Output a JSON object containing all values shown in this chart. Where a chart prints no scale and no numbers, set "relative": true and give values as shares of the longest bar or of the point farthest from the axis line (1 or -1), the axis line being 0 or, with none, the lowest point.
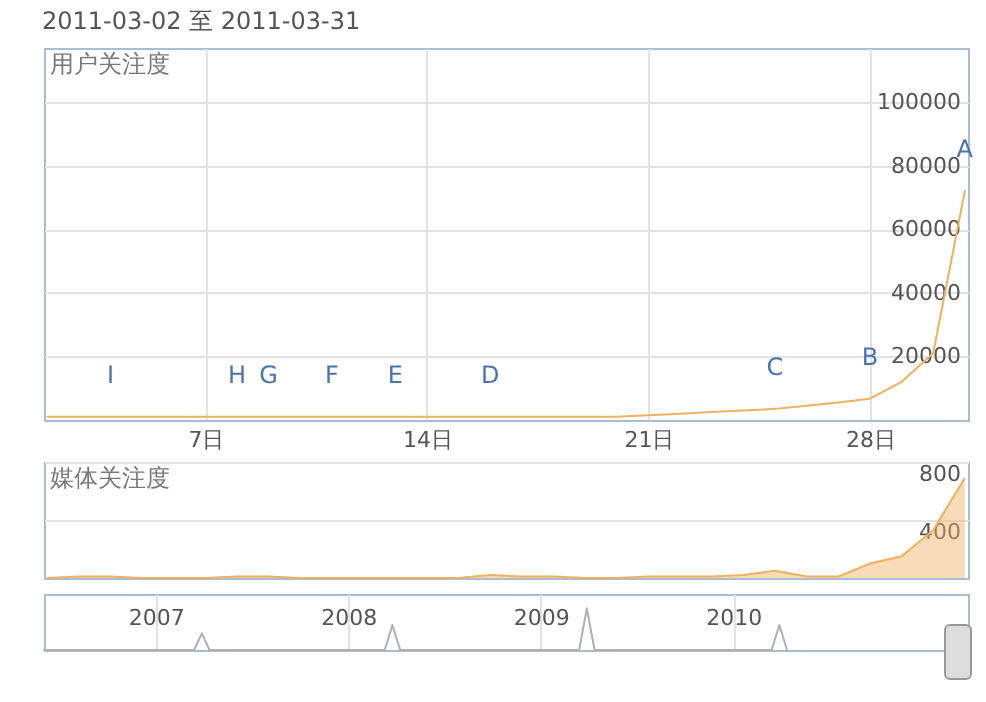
{
  "chart_data": [
    {
      "type": "line",
      "title": "2011-03-02 至 2011-03-31",
      "ylabel": "用户关注度",
      "color": "#f0b060",
      "x": [
        2,
        3,
        4,
        5,
        6,
        7,
        8,
        9,
        10,
        11,
        12,
        13,
        14,
        15,
        16,
        17,
        18,
        19,
        20,
        21,
        22,
        23,
        24,
        25,
        26,
        27,
        28,
        29,
        30,
        31
      ],
      "values": [
        1000,
        1000,
        1000,
        1000,
        1000,
        1000,
        1000,
        1000,
        1000,
        1000,
        1000,
        1000,
        1000,
        1000,
        1000,
        1000,
        1000,
        1000,
        1000,
        1500,
        2000,
        2500,
        3000,
        3500,
        4500,
        5500,
        6700,
        12000,
        21000,
        72000
      ],
      "xlim": [
        1.9,
        31.1
      ],
      "xticks": [
        {
          "value": 7,
          "label": "7日"
        },
        {
          "value": 14,
          "label": "14日"
        },
        {
          "value": 21,
          "label": "21日"
        },
        {
          "value": 28,
          "label": "28日"
        }
      ],
      "ylim": [
        0,
        117000
      ],
      "yticks": [
        20000,
        40000,
        60000,
        80000,
        100000
      ],
      "grid": true,
      "annotations": [
        {
          "text": "I",
          "x": 4,
          "y": 1000
        },
        {
          "text": "H",
          "x": 8,
          "y": 1000
        },
        {
          "text": "G",
          "x": 9,
          "y": 1000
        },
        {
          "text": "F",
          "x": 11,
          "y": 1000
        },
        {
          "text": "E",
          "x": 13,
          "y": 1000
        },
        {
          "text": "D",
          "x": 16,
          "y": 1000
        },
        {
          "text": "C",
          "x": 25,
          "y": 3500
        },
        {
          "text": "B",
          "x": 28,
          "y": 6700
        },
        {
          "text": "A",
          "x": 31,
          "y": 72000
        }
      ]
    },
    {
      "type": "area",
      "ylabel": "媒体关注度",
      "color": "#f0b060",
      "x": [
        2,
        3,
        4,
        5,
        6,
        7,
        8,
        9,
        10,
        11,
        12,
        13,
        14,
        15,
        16,
        17,
        18,
        19,
        20,
        21,
        22,
        23,
        24,
        25,
        26,
        27,
        28,
        29,
        30,
        31
      ],
      "values": [
        0,
        10,
        10,
        0,
        0,
        0,
        10,
        10,
        0,
        0,
        0,
        0,
        0,
        0,
        20,
        10,
        10,
        0,
        0,
        10,
        10,
        10,
        20,
        50,
        10,
        10,
        100,
        150,
        330,
        690
      ],
      "xlim": [
        1.9,
        31.1
      ],
      "ylim": [
        0,
        800
      ],
      "yticks": [
        400,
        800
      ],
      "grid": true,
      "tick_labels": "y"
    },
    {
      "type": "line",
      "relative": true,
      "color": "#b0b0b0",
      "x": [
        2006.42,
        2007.2,
        2007.24,
        2007.28,
        2008.19,
        2008.23,
        2008.27,
        2009.2,
        2009.24,
        2009.28,
        2010.2,
        2010.24,
        2010.28
      ],
      "values": [
        0,
        0,
        0.4,
        0,
        0,
        0.6,
        0,
        0,
        1,
        0,
        0,
        0.6,
        0
      ],
      "xlim": [
        2006.42,
        2011.22
      ],
      "xticks": [
        {
          "value": 2007,
          "label": "2007"
        },
        {
          "value": 2008,
          "label": "2008"
        },
        {
          "value": 2009,
          "label": "2009"
        },
        {
          "value": 2010,
          "label": "2010"
        }
      ],
      "grid": "x",
      "tick_labels": "x"
    }
  ]
}
